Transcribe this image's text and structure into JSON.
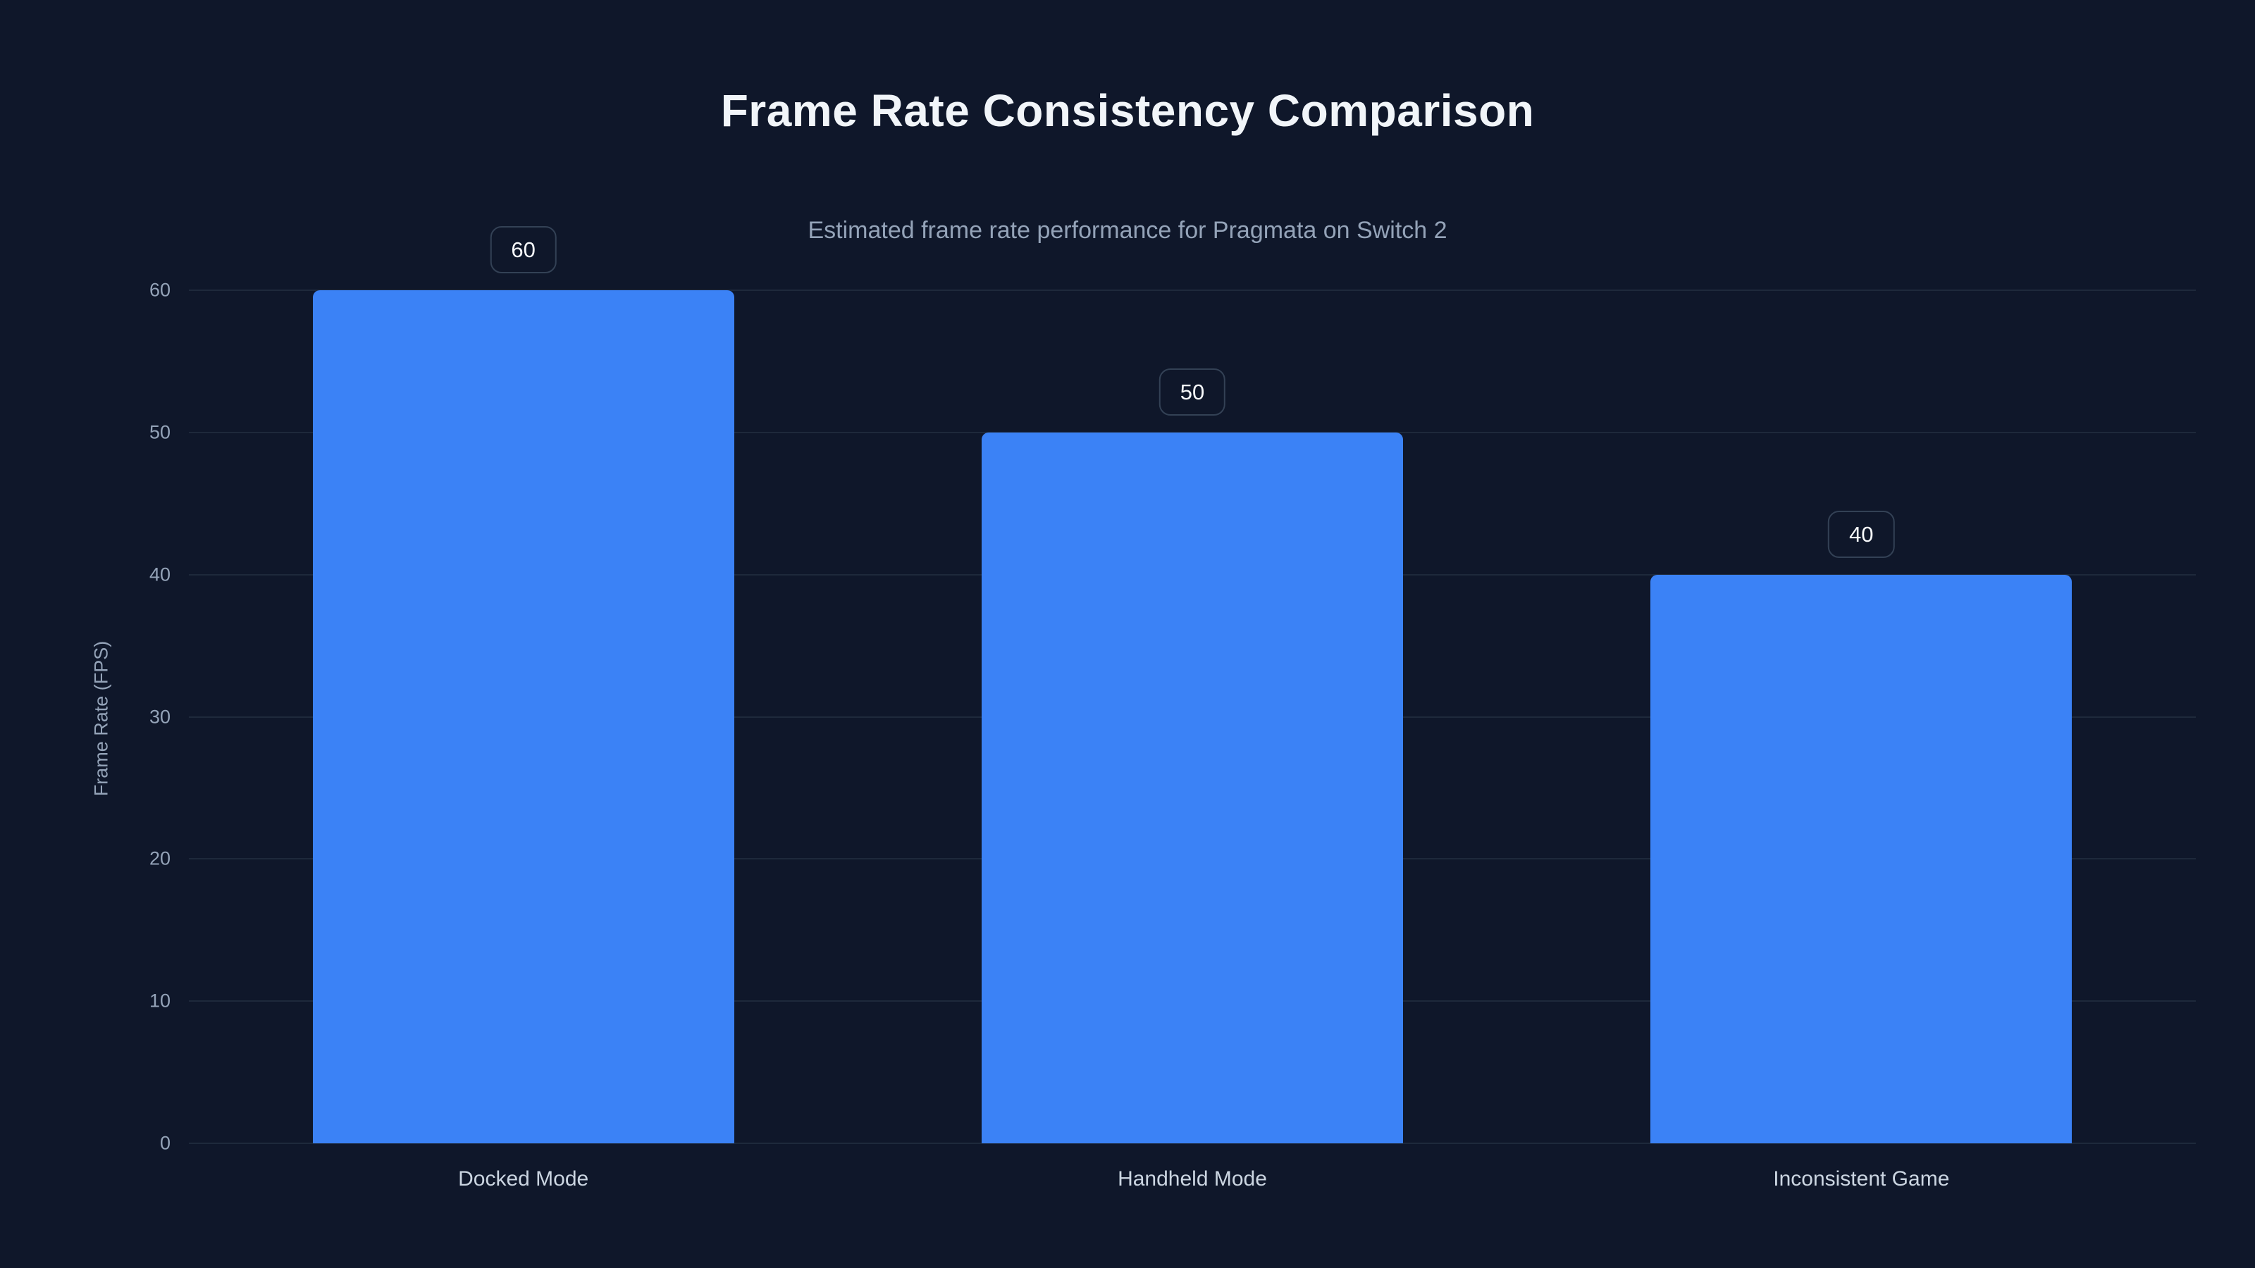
{
  "chart_data": {
    "type": "bar",
    "title": "Frame Rate Consistency Comparison",
    "subtitle": "Estimated frame rate performance for Pragmata on Switch 2",
    "categories": [
      "Docked Mode",
      "Handheld Mode",
      "Inconsistent Game"
    ],
    "values": [
      60,
      50,
      40
    ],
    "value_labels": [
      "60",
      "50",
      "40"
    ],
    "xlabel": "",
    "ylabel": "Frame Rate (FPS)",
    "ylim": [
      0,
      60
    ],
    "yticks": [
      0,
      10,
      20,
      30,
      40,
      50,
      60
    ],
    "grid": "horizontal",
    "legend": "none",
    "colors": {
      "background": "#0f172a",
      "bar": "#3b82f6",
      "gridline": "#1e293b",
      "title": "#f1f5f9",
      "subtitle": "#94a3b8",
      "tick": "#94a3b8",
      "category_label": "#cbd5e1",
      "badge_border": "#334155",
      "badge_text": "#f8fafc"
    }
  }
}
